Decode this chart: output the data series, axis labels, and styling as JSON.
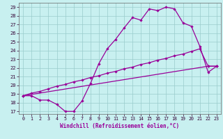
{
  "xlabel": "Windchill (Refroidissement éolien,°C)",
  "bg_color": "#c8f0f0",
  "grid_color": "#99cccc",
  "line_color": "#990099",
  "xlim_min": -0.5,
  "xlim_max": 23.5,
  "ylim_min": 16.7,
  "ylim_max": 29.5,
  "xticks": [
    0,
    1,
    2,
    3,
    4,
    5,
    6,
    7,
    8,
    9,
    10,
    11,
    12,
    13,
    14,
    15,
    16,
    17,
    18,
    19,
    20,
    21,
    22,
    23
  ],
  "yticks": [
    17,
    18,
    19,
    20,
    21,
    22,
    23,
    24,
    25,
    26,
    27,
    28,
    29
  ],
  "curve1_x": [
    0,
    1,
    2,
    3,
    4,
    5,
    6,
    7,
    8,
    9,
    10,
    11,
    12,
    13,
    14,
    15,
    16,
    17,
    18,
    19,
    20,
    21,
    22,
    23
  ],
  "curve1_y": [
    18.8,
    18.8,
    18.3,
    18.3,
    17.8,
    17.0,
    17.0,
    18.2,
    20.2,
    22.5,
    24.2,
    25.3,
    26.6,
    27.8,
    27.5,
    28.8,
    28.6,
    29.0,
    28.8,
    27.2,
    26.8,
    24.5,
    21.5,
    22.2
  ],
  "curve2_x": [
    0,
    1,
    2,
    3,
    4,
    5,
    6,
    7,
    8,
    9,
    10,
    11,
    12,
    13,
    14,
    15,
    16,
    17,
    18,
    19,
    20,
    21,
    22,
    23
  ],
  "curve2_y": [
    18.8,
    19.1,
    19.3,
    19.6,
    19.9,
    20.1,
    20.4,
    20.6,
    20.9,
    21.1,
    21.4,
    21.6,
    21.9,
    22.1,
    22.4,
    22.6,
    22.9,
    23.1,
    23.4,
    23.6,
    23.9,
    24.2,
    22.2,
    22.2
  ],
  "curve3_x": [
    0,
    22,
    23
  ],
  "curve3_y": [
    18.8,
    22.2,
    22.2
  ],
  "lw": 0.9,
  "ms": 2.2
}
